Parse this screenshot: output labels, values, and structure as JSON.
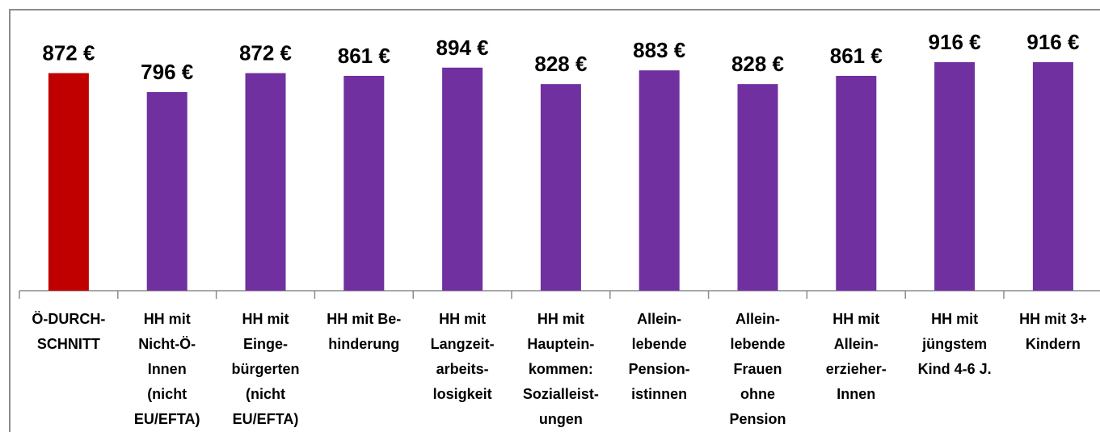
{
  "chart_data": {
    "type": "bar",
    "categories": [
      "Ö-DURCH-\nSCHNITT",
      "HH mit\nNicht-Ö-\nInnen\n(nicht\nEU/EFTA)",
      "HH mit\nEinge-\nbürgerten\n(nicht\nEU/EFTA)",
      "HH mit Be-\nhinderung",
      "HH mit\nLangzeit-\narbeits-\nlosigkeit",
      "HH mit\nHauptein-\nkommen:\nSozialleist-\nungen",
      "Allein-\nlebende\nPension-\nistinnen",
      "Allein-\nlebende\nFrauen\nohne\nPension",
      "HH mit\nAllein-\nerzieher-\nInnen",
      "HH mit\njüngstem\nKind 4-6 J.",
      "HH mit 3+\nKindern"
    ],
    "values": [
      872,
      796,
      872,
      861,
      894,
      828,
      883,
      828,
      861,
      916,
      916
    ],
    "value_labels": [
      "872 €",
      "796 €",
      "872 €",
      "861 €",
      "894 €",
      "828 €",
      "883 €",
      "828 €",
      "861 €",
      "916 €",
      "916 €"
    ],
    "colors": [
      "#c00000",
      "#7030a0",
      "#7030a0",
      "#7030a0",
      "#7030a0",
      "#7030a0",
      "#7030a0",
      "#7030a0",
      "#7030a0",
      "#7030a0",
      "#7030a0"
    ],
    "ylim": [
      0,
      1000
    ]
  }
}
